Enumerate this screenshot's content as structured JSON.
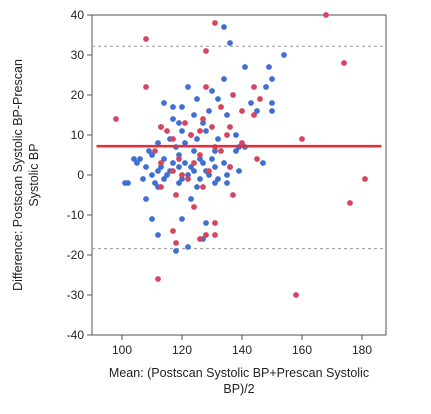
{
  "chart_data": {
    "type": "scatter",
    "xlabel_lines": [
      "Mean: (Postscan Systolic BP+Prescan Systolic",
      "BP)/2"
    ],
    "ylabel_lines": [
      "Difference: Postscan Systolic BP-Prescan",
      "Systolic BP"
    ],
    "xlim": [
      90,
      188
    ],
    "ylim": [
      -40,
      40
    ],
    "x_ticks": [
      100,
      120,
      140,
      160,
      180
    ],
    "y_ticks": [
      -40,
      -30,
      -20,
      -10,
      0,
      10,
      20,
      30,
      40
    ],
    "grid": false,
    "mean_line": 7.2,
    "upper_limit": 32.2,
    "lower_limit": -18.4,
    "colors": {
      "blue_group": "#3f6fd1",
      "red_group": "#d6455f",
      "mean_line": "#e0303c",
      "limit_line": "#9a9a9a"
    },
    "series": [
      {
        "color": "#3f6fd1",
        "points": [
          [
            134,
            37
          ],
          [
            136,
            33
          ],
          [
            154,
            30
          ],
          [
            149,
            27
          ],
          [
            141,
            27
          ],
          [
            150,
            24
          ],
          [
            134,
            24
          ],
          [
            148,
            22
          ],
          [
            130,
            21
          ],
          [
            122,
            22
          ],
          [
            132,
            19
          ],
          [
            125,
            19
          ],
          [
            150,
            18
          ],
          [
            143,
            18
          ],
          [
            114,
            18
          ],
          [
            117,
            17
          ],
          [
            120,
            17
          ],
          [
            145,
            16
          ],
          [
            150,
            16
          ],
          [
            129,
            16
          ],
          [
            124,
            15
          ],
          [
            135,
            15
          ],
          [
            117,
            14
          ],
          [
            119,
            13
          ],
          [
            127,
            13
          ],
          [
            113,
            12
          ],
          [
            120,
            11
          ],
          [
            128,
            11
          ],
          [
            138,
            10
          ],
          [
            123,
            10
          ],
          [
            116,
            9
          ],
          [
            132,
            9
          ],
          [
            125,
            9
          ],
          [
            112,
            8
          ],
          [
            121,
            8
          ],
          [
            139,
            7
          ],
          [
            118,
            7
          ],
          [
            141,
            7
          ],
          [
            124,
            6
          ],
          [
            131,
            6
          ],
          [
            109,
            6
          ],
          [
            138,
            6
          ],
          [
            119,
            5
          ],
          [
            110,
            5
          ],
          [
            126,
            4
          ],
          [
            106,
            4
          ],
          [
            114,
            4
          ],
          [
            130,
            4
          ],
          [
            104,
            4
          ],
          [
            105,
            3
          ],
          [
            147,
            3
          ],
          [
            117,
            3
          ],
          [
            121,
            3
          ],
          [
            127,
            3
          ],
          [
            134,
            3
          ],
          [
            108,
            2
          ],
          [
            113,
            2
          ],
          [
            119,
            2
          ],
          [
            123,
            2
          ],
          [
            131,
            2
          ],
          [
            136,
            2
          ],
          [
            112,
            1
          ],
          [
            116,
            1
          ],
          [
            124,
            1
          ],
          [
            128,
            1
          ],
          [
            139,
            1
          ],
          [
            110,
            0
          ],
          [
            115,
            0
          ],
          [
            122,
            0
          ],
          [
            129,
            0
          ],
          [
            135,
            0
          ],
          [
            107,
            -1
          ],
          [
            114,
            -1
          ],
          [
            120,
            -1
          ],
          [
            126,
            -1
          ],
          [
            132,
            -1
          ],
          [
            101,
            -2
          ],
          [
            102,
            -2
          ],
          [
            111,
            -2
          ],
          [
            119,
            -2
          ],
          [
            131,
            -2
          ],
          [
            135,
            -2
          ],
          [
            112,
            -3
          ],
          [
            125,
            -3
          ],
          [
            108,
            -6
          ],
          [
            123,
            -6
          ],
          [
            110,
            -11
          ],
          [
            120,
            -11
          ],
          [
            128,
            -12
          ],
          [
            112,
            -15
          ],
          [
            127,
            -16
          ],
          [
            122,
            -18
          ],
          [
            118,
            -19
          ]
        ]
      },
      {
        "color": "#d6455f",
        "points": [
          [
            131,
            38
          ],
          [
            168,
            40
          ],
          [
            108,
            34
          ],
          [
            128,
            31
          ],
          [
            174,
            28
          ],
          [
            108,
            22
          ],
          [
            144,
            22
          ],
          [
            128,
            22
          ],
          [
            137,
            20
          ],
          [
            146,
            19
          ],
          [
            133,
            17
          ],
          [
            140,
            16
          ],
          [
            144,
            15
          ],
          [
            127,
            14
          ],
          [
            121,
            13
          ],
          [
            130,
            12
          ],
          [
            113,
            12
          ],
          [
            136,
            12
          ],
          [
            115,
            11
          ],
          [
            126,
            11
          ],
          [
            135,
            10
          ],
          [
            123,
            10
          ],
          [
            160,
            9
          ],
          [
            117,
            9
          ],
          [
            140,
            8
          ],
          [
            131,
            7
          ],
          [
            133,
            6
          ],
          [
            111,
            6
          ],
          [
            126,
            5
          ],
          [
            119,
            4
          ],
          [
            145,
            4
          ],
          [
            113,
            3
          ],
          [
            124,
            3
          ],
          [
            136,
            2
          ],
          [
            117,
            1
          ],
          [
            129,
            1
          ],
          [
            120,
            0
          ],
          [
            122,
            -1
          ],
          [
            113,
            -3
          ],
          [
            127,
            -3
          ],
          [
            181,
            -1
          ],
          [
            137,
            -5
          ],
          [
            118,
            -5
          ],
          [
            176,
            -7
          ],
          [
            124,
            -8
          ],
          [
            131,
            -12
          ],
          [
            117,
            -14
          ],
          [
            131,
            -15
          ],
          [
            128,
            -15
          ],
          [
            118,
            -17
          ],
          [
            126,
            -16
          ],
          [
            112,
            -26
          ],
          [
            158,
            -30
          ],
          [
            98,
            14
          ]
        ]
      }
    ]
  }
}
